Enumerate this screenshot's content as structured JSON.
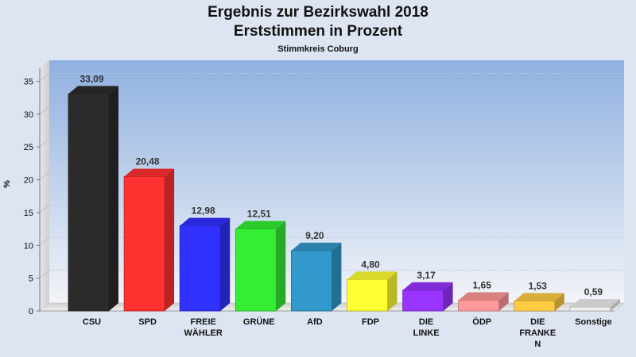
{
  "titles": {
    "line1": "Ergebnis zur Bezirkswahl 2018",
    "line2": "Erststimmen in Prozent",
    "subtitle": "Stimmkreis Coburg"
  },
  "chart_data": {
    "type": "bar",
    "title": "Ergebnis zur Bezirkswahl 2018 Erststimmen in Prozent",
    "subtitle": "Stimmkreis Coburg",
    "xlabel": "",
    "ylabel": "%",
    "ylim": [
      0,
      37
    ],
    "yticks": [
      0,
      5,
      10,
      15,
      20,
      25,
      30,
      35
    ],
    "grid": true,
    "categories": [
      "CSU",
      "SPD",
      "FREIE WÄHLER",
      "GRÜNE",
      "AfD",
      "FDP",
      "DIE LINKE",
      "ÖDP",
      "DIE FRANKEN",
      "Sonstige"
    ],
    "category_label_lines": [
      [
        "CSU"
      ],
      [
        "SPD"
      ],
      [
        "FREIE",
        "WÄHLER"
      ],
      [
        "GRÜNE"
      ],
      [
        "AfD"
      ],
      [
        "FDP"
      ],
      [
        "DIE",
        "LINKE"
      ],
      [
        "ÖDP"
      ],
      [
        "DIE",
        "FRANKE",
        "N"
      ],
      [
        "Sonstige"
      ]
    ],
    "values": [
      33.09,
      20.48,
      12.98,
      12.51,
      9.2,
      4.8,
      3.17,
      1.65,
      1.53,
      0.59
    ],
    "value_labels": [
      "33,09",
      "20,48",
      "12,98",
      "12,51",
      "9,20",
      "4,80",
      "3,17",
      "1,65",
      "1,53",
      "0,59"
    ],
    "colors": [
      "#2b2b2b",
      "#ff3030",
      "#3030ff",
      "#33ee33",
      "#3399cc",
      "#ffff33",
      "#9933ff",
      "#ff9999",
      "#ffcc44",
      "#eeeeee"
    ]
  }
}
